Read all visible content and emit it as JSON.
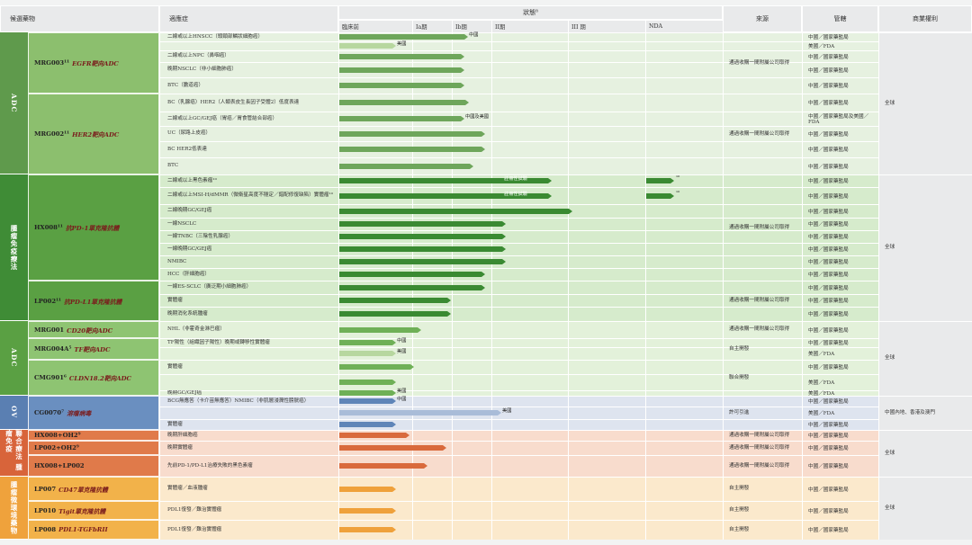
{
  "header": {
    "candidate": "候選藥物",
    "indication": "適應症",
    "status": "狀態⁸",
    "phases": [
      "臨床前",
      "Ia期",
      "Ib期",
      "II期",
      "III 期",
      "NDA"
    ],
    "source": "來源",
    "regulator": "管轄",
    "rights": "商業權利"
  },
  "sections": [
    {
      "label": "ADC",
      "color": "#5f9a4c"
    },
    {
      "label": "腫瘤免疫療法",
      "color": "#3f8c36"
    },
    {
      "label": "ADC",
      "color": "#5aa043"
    },
    {
      "label": "OV",
      "color": "#5a7fb2"
    },
    {
      "label": "聯合療法 腫瘤免疫",
      "color": "#d8643a"
    },
    {
      "label": "腫瘤微環境藥物",
      "color": "#efa23c"
    }
  ],
  "candidates": [
    {
      "code": "MRG003¹¹",
      "target": "EGFR靶向ADC"
    },
    {
      "code": "MRG002¹¹",
      "target": "HER2靶向ADC"
    },
    {
      "code": "HX008¹¹",
      "target": "抗PD-1單克隆抗體"
    },
    {
      "code": "LP002¹¹",
      "target": "抗PD-L1單克隆抗體"
    },
    {
      "code": "MRG001",
      "target": "CD20靶向ADC"
    },
    {
      "code": "MRG004A⁵",
      "target": "TF靶向ADC"
    },
    {
      "code": "CMG901⁶",
      "target": "CLDN18.2靶向ADC"
    },
    {
      "code": "CG0070⁷",
      "target": "溶瘤病毒"
    },
    {
      "code": "HX008+OH2⁹",
      "target": ""
    },
    {
      "code": "LP002+OH2⁹",
      "target": ""
    },
    {
      "code": "HX008+LP002",
      "target": ""
    },
    {
      "code": "LP007",
      "target": "CD47單克隆抗體"
    },
    {
      "code": "LP010",
      "target": "Tigit單克隆抗體"
    },
    {
      "code": "LP008",
      "target": "PDL1-TGFbRII"
    }
  ],
  "rows": [
    {
      "text": "二線或以上HNSCC（頭頸部鱗狀細胞癌）",
      "label": "中國",
      "reg": "中國／國家藥監局"
    },
    {
      "text": "",
      "label": "美國",
      "reg": "美國／FDA"
    },
    {
      "text": "二線或以上NPC（鼻咽癌）",
      "label": "",
      "reg": "中國／國家藥監局"
    },
    {
      "text": "晚期NSCLC（非小細胞肺癌）",
      "label": "",
      "reg": "中國／國家藥監局"
    },
    {
      "text": "BTC（膽道癌）",
      "label": "",
      "reg": "中國／國家藥監局"
    },
    {
      "text": "BC（乳腺癌）HER2（人類表皮生長因子受體2）低度表達",
      "label": "",
      "reg": "中國／國家藥監局"
    },
    {
      "text": "二線或以上GC/GEJ癌（胃癌／胃食管結合部癌）",
      "label": "中國及美國",
      "reg": "中國／國家藥監局及美國／FDA"
    },
    {
      "text": "UC（尿路上皮癌）",
      "label": "",
      "reg": "中國／國家藥監局"
    },
    {
      "text": "BC HER2低表達",
      "label": "",
      "reg": "中國／國家藥監局"
    },
    {
      "text": "BTC",
      "label": "",
      "reg": "中國／國家藥監局"
    },
    {
      "text": "二線或以上黑色素瘤¹⁰",
      "label": "註冊性試驗",
      "reg": "中國／國家藥監局"
    },
    {
      "text": "二線或以上MSI-H/dMMR（微衛星高度不穩定／錯配修復缺陷）實體瘤¹⁰",
      "label": "註冊性試驗",
      "reg": "中國／國家藥監局"
    },
    {
      "text": "二線晚期GC/GEJ癌",
      "label": "",
      "reg": "中國／國家藥監局"
    },
    {
      "text": "一線NSCLC",
      "label": "",
      "reg": "中國／國家藥監局"
    },
    {
      "text": "一線TNBC（三陰性乳腺癌）",
      "label": "",
      "reg": "中國／國家藥監局"
    },
    {
      "text": "一線晚期GC/GEJ癌",
      "label": "",
      "reg": "中國／國家藥監局"
    },
    {
      "text": "NMIBC",
      "label": "",
      "reg": "中國／國家藥監局"
    },
    {
      "text": "HCC（肝細胞癌）",
      "label": "",
      "reg": "中國／國家藥監局"
    },
    {
      "text": "一線ES-SCLC（廣泛期小細胞肺癌）",
      "label": "",
      "reg": "中國／國家藥監局"
    },
    {
      "text": "實體瘤",
      "label": "",
      "reg": "中國／國家藥監局"
    },
    {
      "text": "晚期消化系統腫瘤",
      "label": "",
      "reg": "中國／國家藥監局"
    },
    {
      "text": "NHL（非霍奇金淋巴瘤）",
      "label": "",
      "reg": "中國／國家藥監局"
    },
    {
      "text": "TF陽性（組織因子陽性）晚期或轉移性實體瘤",
      "label": "中國",
      "reg": "中國／國家藥監局"
    },
    {
      "text": "",
      "label": "美國",
      "reg": "美國／FDA"
    },
    {
      "text": "實體瘤",
      "label": "",
      "reg": "中國／國家藥監局"
    },
    {
      "text": "",
      "label": "",
      "reg": "美國／FDA"
    },
    {
      "text": "晚期GC/GEJ癌",
      "label": "美國",
      "reg": "美國／FDA"
    },
    {
      "text": "BCG無應答（卡介苗無應答）NMIBC（非肌層浸潤性膀胱癌）",
      "label": "中國",
      "reg": "中國／國家藥監局"
    },
    {
      "text": "",
      "label": "美國",
      "reg": "美國／FDA"
    },
    {
      "text": "實體瘤",
      "label": "",
      "reg": "中國／國家藥監局"
    },
    {
      "text": "晚期肝細胞癌",
      "label": "",
      "reg": "中國／國家藥監局"
    },
    {
      "text": "晚期實體瘤",
      "label": "",
      "reg": "中國／國家藥監局"
    },
    {
      "text": "先前PD-1/PD-L1治療失敗的黑色素瘤",
      "label": "",
      "reg": "中國／國家藥監局"
    },
    {
      "text": "實體瘤／血液腫瘤",
      "label": "",
      "reg": "中國／國家藥監局"
    },
    {
      "text": "PDL1復發／難治實體瘤",
      "label": "",
      "reg": "中國／國家藥監局"
    },
    {
      "text": "PDL1復發／難治實體瘤",
      "label": "",
      "reg": "中國／國家藥監局"
    }
  ],
  "row_progress": [
    0.545,
    0.23,
    0.53,
    0.53,
    0.53,
    0.55,
    0.53,
    0.62,
    0.62,
    0.57,
    0.91,
    0.91,
    1.0,
    0.71,
    0.71,
    0.71,
    0.71,
    0.62,
    0.62,
    0.47,
    0.47,
    0.34,
    0.23,
    0.23,
    0.31,
    0.23,
    0.23,
    0.23,
    0.69,
    0.23,
    0.29,
    0.45,
    0.37,
    0.23,
    0.23,
    0.23
  ],
  "nda_extra": [
    {
      "row": 10,
      "frac": 0.93,
      "mark": "¹⁰"
    },
    {
      "row": 11,
      "frac": 0.93,
      "mark": "¹⁰"
    }
  ],
  "sources": [
    "通過收購一間附屬公司取得",
    "通過收購一間附屬公司取得",
    "通過收購一間附屬公司取得",
    "通過收購一間附屬公司取得",
    "通過收購一間附屬公司取得",
    "自主開發",
    "聯合開發",
    "許可引進",
    "通過收購一間附屬公司取得",
    "通過收購一間附屬公司取得",
    "通過收購一間附屬公司取得",
    "自主開發",
    "自主開發",
    "自主開發"
  ],
  "rights": [
    "全球",
    "全球",
    "全球",
    "中國內地、香港及澳門",
    "全球",
    "全球"
  ]
}
